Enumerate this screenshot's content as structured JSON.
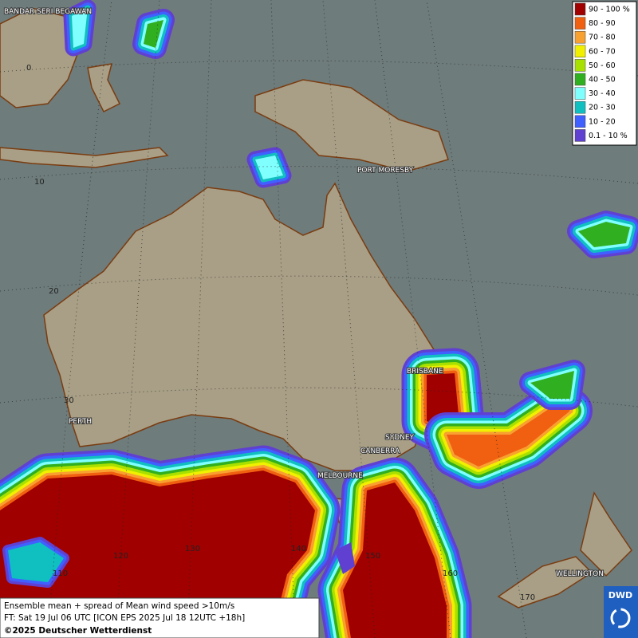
{
  "map": {
    "places": [
      "BANDAR SERI BEGAWAN",
      "PORT MORESBY",
      "BRISBANE",
      "PERTH",
      "SYDNEY",
      "CANBERRA",
      "MELBOURNE",
      "WELLINGTON"
    ],
    "grid_labels": [
      "0",
      "10",
      "20",
      "30",
      "110",
      "120",
      "130",
      "140",
      "150",
      "160",
      "170"
    ],
    "legend": [
      {
        "label": "90 - 100 %",
        "color": "#a00000"
      },
      {
        "label": "80 - 90",
        "color": "#f06010"
      },
      {
        "label": "70 - 80",
        "color": "#f8a030"
      },
      {
        "label": "60 - 70",
        "color": "#f0f000"
      },
      {
        "label": "50 - 60",
        "color": "#a8e000"
      },
      {
        "label": "40 - 50",
        "color": "#30b020"
      },
      {
        "label": "30 - 40",
        "color": "#80ffff"
      },
      {
        "label": "20 - 30",
        "color": "#10c0c0"
      },
      {
        "label": "10 - 20",
        "color": "#4060ff"
      },
      {
        "label": "0.1 - 10 %",
        "color": "#6040d0"
      }
    ],
    "footer": [
      "Ensemble mean + spread of Mean wind speed >10m/s",
      "FT: Sat 19 Jul 06 UTC [ICON EPS 2025 Jul 18 12UTC +18h]",
      "©2025 Deutscher Wetterdienst"
    ],
    "logo": "DWD"
  }
}
